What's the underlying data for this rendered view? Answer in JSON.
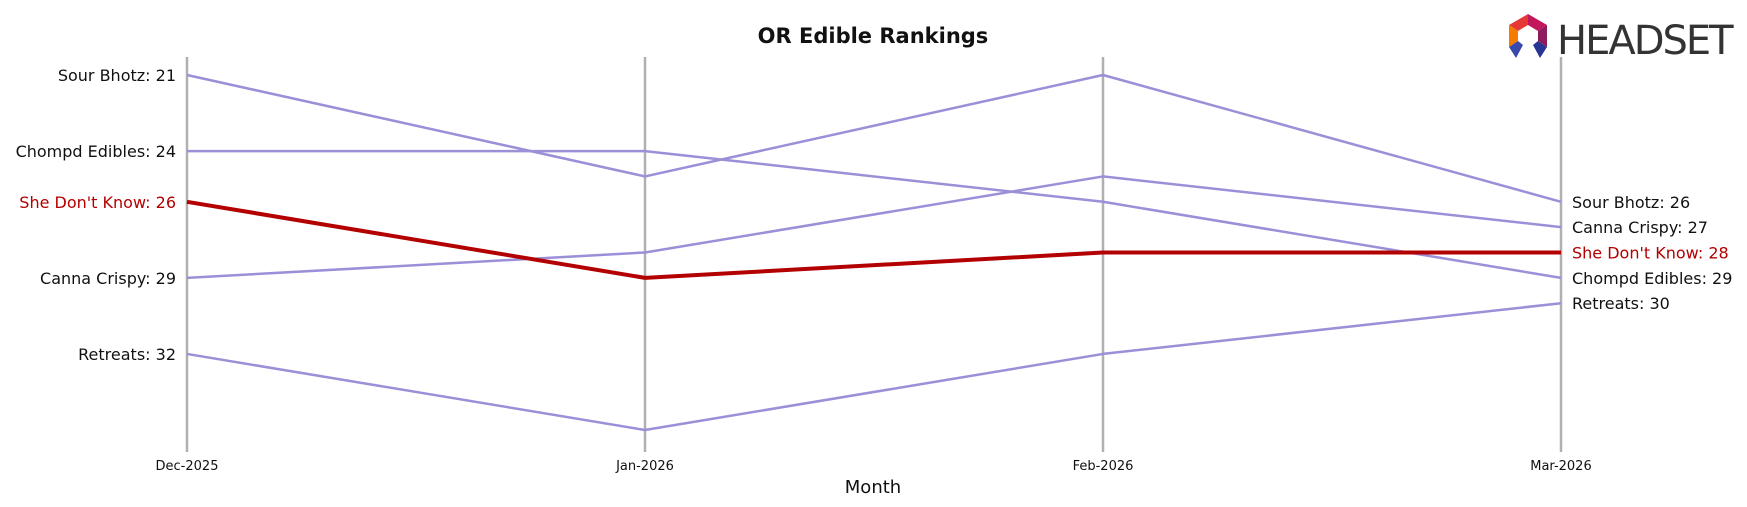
{
  "logo": {
    "text": "HEADSET",
    "icon": "headset-logo-icon"
  },
  "colors": {
    "highlight": "#b30000",
    "series": "#9b8fd8",
    "axis": "#b0b0b0",
    "text": "#111111"
  },
  "chart_data": {
    "type": "line",
    "title": "OR Edible Rankings",
    "xlabel": "Month",
    "ylabel": "",
    "x": [
      "Dec-2025",
      "Jan-2026",
      "Feb-2026",
      "Mar-2026"
    ],
    "y_inverted": true,
    "ylim": [
      21,
      34
    ],
    "grid": "vertical",
    "legend": "none",
    "highlight": "She Don't Know",
    "series": [
      {
        "name": "Sour Bhotz",
        "values": [
          21,
          25,
          21,
          26
        ],
        "start_label": "Sour Bhotz: 21",
        "end_label": "Sour Bhotz: 26"
      },
      {
        "name": "Chompd Edibles",
        "values": [
          24,
          24,
          26,
          29
        ],
        "start_label": "Chompd Edibles: 24",
        "end_label": "Chompd Edibles: 29"
      },
      {
        "name": "She Don't Know",
        "values": [
          26,
          29,
          28,
          28
        ],
        "start_label": "She Don't Know: 26",
        "end_label": "She Don't Know: 28"
      },
      {
        "name": "Canna Crispy",
        "values": [
          29,
          28,
          25,
          27
        ],
        "start_label": "Canna Crispy: 29",
        "end_label": "Canna Crispy: 27"
      },
      {
        "name": "Retreats",
        "values": [
          32,
          35,
          32,
          30
        ],
        "start_label": "Retreats: 32",
        "end_label": "Retreats: 30"
      }
    ]
  }
}
